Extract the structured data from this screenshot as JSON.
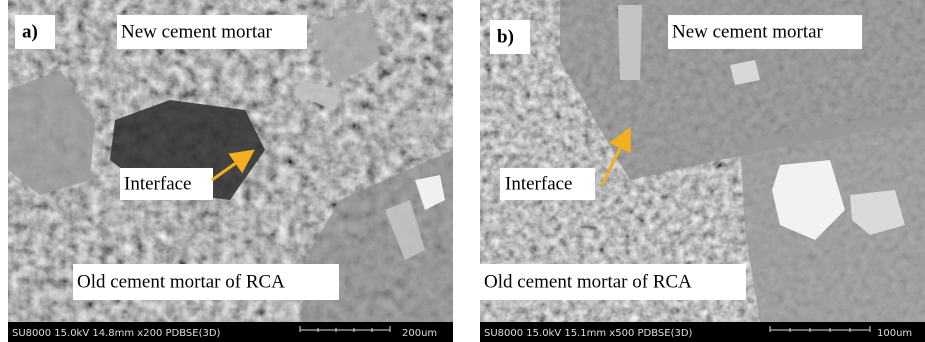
{
  "panels": [
    {
      "label": "a)",
      "top_annotation": "New cement mortar",
      "interface": "Interface",
      "bottom_annotation": "Old cement mortar of RCA",
      "info": "SU8000 15.0kV 14.8mm x200 PDBSE(3D)",
      "scale": "200um"
    },
    {
      "label": "b)",
      "top_annotation": "New cement mortar",
      "interface": "Interface",
      "bottom_annotation": "Old cement mortar of RCA",
      "info": "SU8000 15.0kV 15.1mm x500 PDBSE(3D)",
      "scale": "100um"
    }
  ]
}
